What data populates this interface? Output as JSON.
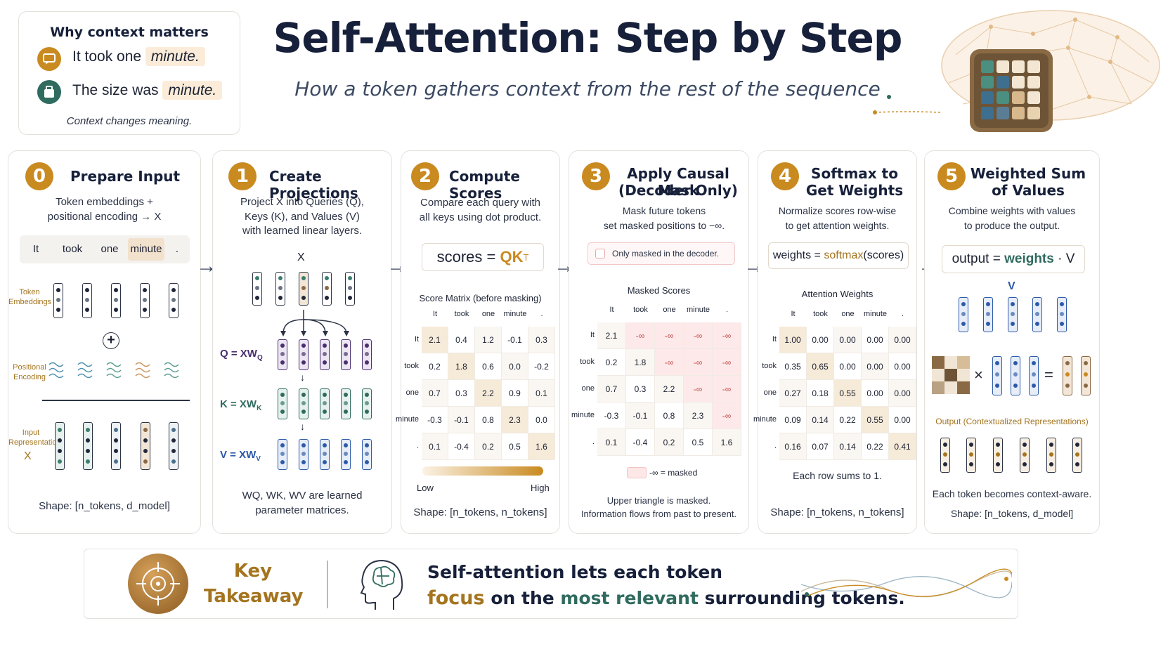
{
  "header": {
    "title": "Self-Attention: Step by Step",
    "subtitle": "How a token gathers context from the rest of the sequence"
  },
  "context_box": {
    "heading": "Why context matters",
    "line1_text": "It took one",
    "line1_word": "minute.",
    "line2_text": "The size was",
    "line2_word": "minute.",
    "caption": "Context changes meaning."
  },
  "tokens": [
    "It",
    "took",
    "one",
    "minute",
    "."
  ],
  "step0": {
    "number": "0",
    "title": "Prepare Input",
    "desc_line1": "Token embeddings +",
    "desc_line2": "positional encoding → X",
    "label_token": "Token Embeddings",
    "label_positional": "Positional Encoding",
    "label_input": "Input Representation",
    "label_x": "X",
    "shape": "Shape: [n_tokens, d_model]"
  },
  "step1": {
    "number": "1",
    "title": "Create Projections",
    "desc_line1": "Project X into Queries (Q),",
    "desc_line2": "Keys (K), and Values (V)",
    "desc_line3": "with learned linear layers.",
    "x_label": "X",
    "q_label": "Q = XW",
    "q_sub": "Q",
    "k_label": "K = XW",
    "k_sub": "K",
    "v_label": "V = XW",
    "v_sub": "V",
    "note_line1": "WQ, WK, WV are learned",
    "note_line2": "parameter matrices."
  },
  "step2": {
    "number": "2",
    "title": "Compute Scores",
    "desc_line1": "Compare each query with",
    "desc_line2": "all keys using dot product.",
    "formula_left": "scores =",
    "formula_right": "QK",
    "formula_sup": "T",
    "matrix_title": "Score Matrix (before masking)",
    "legend_low": "Low",
    "legend_high": "High",
    "shape": "Shape: [n_tokens, n_tokens]"
  },
  "step3": {
    "number": "3",
    "title_line1": "Apply Causal Mask",
    "title_line2": "(Decoder Only)",
    "desc_line1": "Mask future tokens",
    "desc_line2": "set masked positions to −∞.",
    "checkbox_label": "Only masked in the decoder.",
    "matrix_title": "Masked Scores",
    "legend": "-∞ = masked",
    "note_line1": "Upper triangle is masked.",
    "note_line2": "Information flows from past to present."
  },
  "step4": {
    "number": "4",
    "title_line1": "Softmax to",
    "title_line2": "Get Weights",
    "desc_line1": "Normalize scores row-wise",
    "desc_line2": "to get attention weights.",
    "formula_left": "weights =",
    "formula_right": "softmax",
    "formula_arg": "(scores)",
    "matrix_title": "Attention Weights",
    "note": "Each row sums to 1.",
    "shape": "Shape: [n_tokens, n_tokens]"
  },
  "step5": {
    "number": "5",
    "title_line1": "Weighted Sum",
    "title_line2": "of Values",
    "desc_line1": "Combine weights with values",
    "desc_line2": "to produce the output.",
    "formula_left": "output =",
    "formula_mid": "weights",
    "formula_right": "· V",
    "v_label": "V",
    "times": "×",
    "equals": "=",
    "output_label": "Output (Contextualized Representations)",
    "note": "Each token becomes context-aware.",
    "shape": "Shape: [n_tokens, d_model]"
  },
  "matrices": {
    "scores": [
      [
        "2.1",
        "0.4",
        "1.2",
        "-0.1",
        "0.3"
      ],
      [
        "0.2",
        "1.8",
        "0.6",
        "0.0",
        "-0.2"
      ],
      [
        "0.7",
        "0.3",
        "2.2",
        "0.9",
        "0.1"
      ],
      [
        "-0.3",
        "-0.1",
        "0.8",
        "2.3",
        "0.0"
      ],
      [
        "0.1",
        "-0.4",
        "0.2",
        "0.5",
        "1.6"
      ]
    ],
    "masked": [
      [
        "2.1",
        "-∞",
        "-∞",
        "-∞",
        "-∞"
      ],
      [
        "0.2",
        "1.8",
        "-∞",
        "-∞",
        "-∞"
      ],
      [
        "0.7",
        "0.3",
        "2.2",
        "-∞",
        "-∞"
      ],
      [
        "-0.3",
        "-0.1",
        "0.8",
        "2.3",
        "-∞"
      ],
      [
        "0.1",
        "-0.4",
        "0.2",
        "0.5",
        "1.6"
      ]
    ],
    "weights": [
      [
        "1.00",
        "0.00",
        "0.00",
        "0.00",
        "0.00"
      ],
      [
        "0.35",
        "0.65",
        "0.00",
        "0.00",
        "0.00"
      ],
      [
        "0.27",
        "0.18",
        "0.55",
        "0.00",
        "0.00"
      ],
      [
        "0.09",
        "0.14",
        "0.22",
        "0.55",
        "0.00"
      ],
      [
        "0.16",
        "0.07",
        "0.14",
        "0.22",
        "0.41"
      ]
    ]
  },
  "takeaway": {
    "key_line1": "Key",
    "key_line2": "Takeaway",
    "line1": "Self-attention lets each token",
    "w_focus": "focus",
    "w_onthe": "on the",
    "w_most": "most relevant",
    "w_surround": "surrounding tokens."
  },
  "colors": {
    "accent_gold": "#c98a20",
    "navy": "#17203a",
    "teal": "#2f6b5e",
    "purple": "#4a2f6e",
    "blue": "#2d5aa8"
  }
}
